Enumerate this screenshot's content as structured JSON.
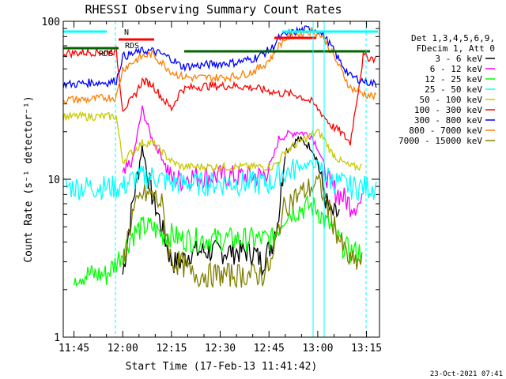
{
  "chart_data": {
    "type": "line",
    "title": "RHESSI Observing Summary Count Rates",
    "xlabel": "Start Time (17-Feb-13 11:41:42)",
    "ylabel": "Count Rate (s⁻¹ detector⁻¹)",
    "yscale": "log",
    "ylim": [
      1,
      100
    ],
    "xlim": [
      "11:41:42",
      "13:19:00"
    ],
    "x_ticks": [
      "11:45",
      "12:00",
      "12:15",
      "12:30",
      "12:45",
      "13:00",
      "13:15"
    ],
    "y_ticks": [
      "1",
      "10",
      "100"
    ],
    "footer": "23-Oct-2021 07:41",
    "legend_header": [
      "Det 1,3,4,5,6,9,",
      "FDecim 1, Att 0"
    ],
    "legend_placement": "right",
    "x": [
      "11:41:42",
      "11:45",
      "11:50",
      "11:55",
      "11:58",
      "12:00",
      "12:03",
      "12:06",
      "12:09",
      "12:12",
      "12:15",
      "12:18",
      "12:21",
      "12:25",
      "12:30",
      "12:35",
      "12:40",
      "12:43",
      "12:46",
      "12:48",
      "12:50",
      "12:54",
      "12:58",
      "13:00",
      "13:02",
      "13:04",
      "13:07",
      "13:10",
      "13:14",
      "13:18"
    ],
    "series": [
      {
        "name": "3 - 6 keV",
        "color": "#000000",
        "values": [
          null,
          null,
          null,
          null,
          null,
          2.5,
          7,
          16,
          8,
          5,
          3,
          3,
          3.5,
          3.5,
          3.5,
          3.5,
          3.5,
          3,
          4,
          6,
          15,
          18,
          16,
          13,
          8,
          6,
          null,
          null,
          null,
          null
        ]
      },
      {
        "name": "6 - 12 keV",
        "color": "#ff00ff",
        "values": [
          null,
          null,
          null,
          null,
          null,
          10,
          13,
          28,
          18,
          14,
          10,
          10,
          10.5,
          10.5,
          10.5,
          10.5,
          10.5,
          10.5,
          13,
          18,
          19,
          20,
          19,
          16,
          12,
          9,
          8,
          7,
          null,
          null
        ]
      },
      {
        "name": "12 - 25 keV",
        "color": "#00ff00",
        "values": [
          null,
          2.5,
          2.5,
          2.5,
          3,
          3.5,
          4.5,
          5,
          5,
          4.5,
          4.5,
          4.2,
          4.2,
          4.2,
          4.2,
          4.2,
          4.2,
          4.2,
          4.2,
          5,
          6,
          6.5,
          6.8,
          6.5,
          5.5,
          5,
          4,
          3.5,
          null,
          null
        ]
      },
      {
        "name": "25 - 50 keV",
        "color": "#00ffff",
        "values": [
          9,
          9,
          9,
          9,
          9,
          9,
          10,
          10.5,
          10.5,
          10,
          9.5,
          9.5,
          9.5,
          9.5,
          9.5,
          9.5,
          9.5,
          9.5,
          9.5,
          11,
          11,
          12,
          12.5,
          12.5,
          11,
          10,
          9.5,
          9,
          9,
          9
        ]
      },
      {
        "name": "50 - 100 keV",
        "color": "#c8c800",
        "values": [
          25,
          25,
          25,
          25,
          25,
          13,
          15,
          17,
          17,
          15,
          13,
          12,
          12,
          12,
          12,
          12,
          12,
          12,
          12,
          13,
          15,
          17,
          19,
          20,
          18,
          15,
          13,
          12,
          null,
          null
        ]
      },
      {
        "name": "100 - 300 keV",
        "color": "#ff0000",
        "values": [
          63,
          63,
          64,
          64,
          65,
          28,
          32,
          42,
          40,
          33,
          28,
          37,
          38,
          39,
          39,
          39,
          38,
          37,
          36,
          35,
          35,
          34,
          31,
          28,
          25,
          22,
          20,
          17,
          60,
          58
        ]
      },
      {
        "name": "300 - 800 keV",
        "color": "#0000ff",
        "values": [
          40,
          40,
          41,
          41,
          42,
          60,
          62,
          65,
          65,
          62,
          58,
          52,
          52,
          53,
          54,
          55,
          58,
          62,
          68,
          78,
          82,
          87,
          90,
          88,
          80,
          70,
          55,
          45,
          42,
          40
        ]
      },
      {
        "name": "800 - 7000 keV",
        "color": "#ff7f00",
        "values": [
          32,
          32,
          32,
          33,
          33,
          50,
          55,
          60,
          62,
          55,
          48,
          45,
          44,
          44,
          44,
          45,
          48,
          52,
          60,
          70,
          78,
          83,
          87,
          85,
          78,
          65,
          50,
          38,
          35,
          33
        ]
      },
      {
        "name": "7000 - 15000 keV",
        "color": "#808000",
        "values": [
          null,
          null,
          null,
          null,
          null,
          3,
          6,
          8,
          8,
          7,
          3,
          3,
          2.5,
          2.5,
          2.5,
          2.5,
          2.5,
          2.5,
          3,
          5,
          7,
          8,
          9,
          9.5,
          8,
          6,
          4,
          3,
          null,
          null
        ]
      }
    ],
    "annotations": [
      "N",
      "RDS",
      "RDS"
    ]
  }
}
